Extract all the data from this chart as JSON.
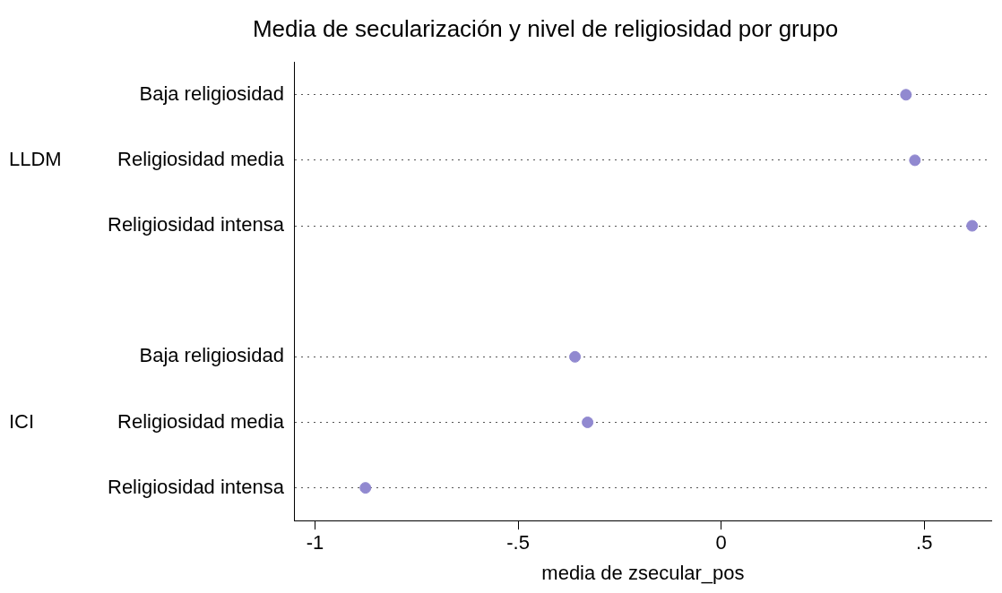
{
  "chart_data": {
    "type": "scatter",
    "title": "Media de secularización y nivel de religiosidad por grupo",
    "xlabel": "media de zsecular_pos",
    "categories": [
      "Baja religiosidad",
      "Religiosidad media",
      "Religiosidad intensa",
      null,
      "Baja religiosidad",
      "Religiosidad media",
      "Religiosidad intensa"
    ],
    "values": [
      0.455,
      0.477,
      0.618,
      null,
      -0.36,
      -0.329,
      -0.876
    ],
    "color": "#9189d0",
    "marker": "circle",
    "orientation": "horizontal",
    "xlim": [
      -1.05,
      0.665
    ],
    "xticks": [
      -1,
      {
        "value": -0.5,
        "label": "-.5"
      },
      0,
      {
        "value": 0.5,
        "label": ".5"
      }
    ],
    "grid": "y",
    "annotations": [
      "LLDM",
      "ICI"
    ]
  }
}
